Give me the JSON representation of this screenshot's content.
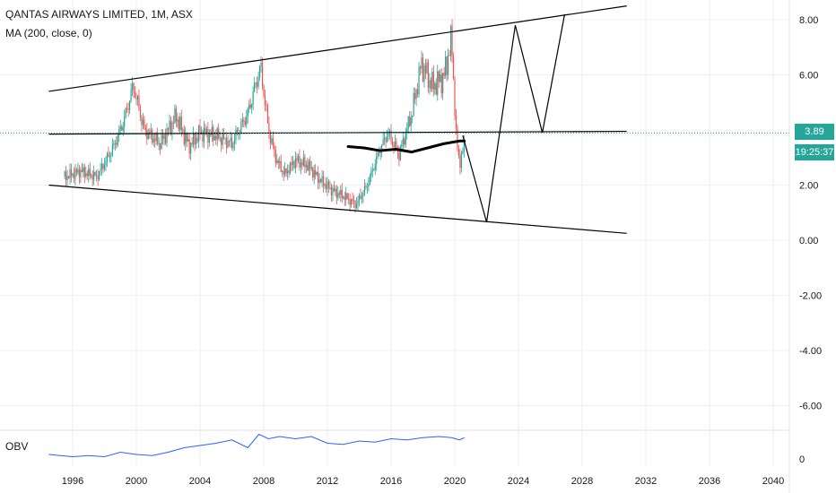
{
  "header": {
    "title": "QANTAS AIRWAYS LIMITED, 1M, ASX",
    "indicator": "MA (200, close, 0)"
  },
  "obv_panel": {
    "label": "OBV",
    "tick": "0"
  },
  "price_tag": {
    "last_price": "3.89",
    "countdown": "19:25:37"
  },
  "colors": {
    "up": "#26a69a",
    "down": "#ef5350",
    "ma": "#000000",
    "trend_lines": "#000000",
    "obv": "#2962ff",
    "price_tag": "#26a69a",
    "grid": "#e0e3eb"
  },
  "chart_data": [
    {
      "type": "candlestick",
      "title": "QANTAS AIRWAYS LIMITED, 1M, ASX",
      "xlim": [
        1994,
        2042
      ],
      "ylim": [
        -7,
        8.5
      ],
      "x_ticks": [
        "1996",
        "2000",
        "2004",
        "2008",
        "2012",
        "2016",
        "2020",
        "2024",
        "2028",
        "2032",
        "2036",
        "2040"
      ],
      "y_ticks": [
        "8.00",
        "6.00",
        "4.00",
        "2.00",
        "0.00",
        "-2.00",
        "-4.00",
        "-6.00"
      ],
      "price_anchors": {
        "x": [
          1995.5,
          1996.5,
          1997.5,
          1998.5,
          1999.2,
          1999.8,
          2000.5,
          2001.5,
          2002.5,
          2003.3,
          2004.0,
          2005.0,
          2006.0,
          2007.0,
          2007.8,
          2008.3,
          2008.8,
          2009.3,
          2010.0,
          2010.8,
          2011.5,
          2012.3,
          2013.0,
          2013.8,
          2014.5,
          2015.3,
          2015.8,
          2016.5,
          2017.3,
          2017.9,
          2018.6,
          2019.3,
          2019.8,
          2020.1,
          2020.3,
          2020.6
        ],
        "close": [
          2.3,
          2.5,
          2.3,
          3.3,
          4.3,
          5.6,
          4.0,
          3.5,
          4.5,
          3.4,
          3.9,
          3.8,
          3.5,
          4.6,
          6.3,
          4.0,
          2.9,
          2.4,
          2.9,
          2.7,
          2.2,
          1.8,
          1.6,
          1.3,
          2.0,
          3.3,
          3.9,
          3.1,
          4.6,
          6.4,
          5.6,
          5.9,
          7.3,
          3.6,
          2.8,
          3.4
        ]
      },
      "ma_series": {
        "name": "MA (200, close, 0)",
        "x": [
          2013.3,
          2014.3,
          2015.3,
          2016.3,
          2017.3,
          2018.3,
          2019.3,
          2020.3,
          2020.6
        ],
        "y": [
          3.4,
          3.35,
          3.25,
          3.3,
          3.2,
          3.35,
          3.5,
          3.6,
          3.6
        ]
      },
      "trend_lines": [
        {
          "x": [
            1994.5,
            2030.8
          ],
          "y": [
            5.4,
            8.5
          ]
        },
        {
          "x": [
            1994.5,
            2030.8
          ],
          "y": [
            3.85,
            3.95
          ]
        },
        {
          "x": [
            1994.5,
            2030.8
          ],
          "y": [
            2.0,
            0.25
          ]
        },
        {
          "x": [
            2020.5,
            2022.0,
            2023.8,
            2025.5,
            2026.9
          ],
          "y": [
            3.8,
            0.65,
            7.8,
            3.9,
            8.2
          ]
        }
      ],
      "last_price": 3.89
    },
    {
      "type": "line",
      "title": "OBV",
      "x_ticks": [
        "1996",
        "2000",
        "2004",
        "2008",
        "2012",
        "2016",
        "2020",
        "2024",
        "2028",
        "2032",
        "2036",
        "2040"
      ],
      "y_ticks": [
        "0"
      ],
      "series": [
        {
          "x": [
            1994.5,
            1996.0,
            1997.0,
            1998.0,
            1999.0,
            2000.0,
            2001.0,
            2002.0,
            2003.0,
            2004.0,
            2005.0,
            2006.0,
            2007.0,
            2007.7,
            2008.3,
            2009.0,
            2010.0,
            2011.0,
            2012.0,
            2013.0,
            2014.0,
            2015.0,
            2016.0,
            2017.0,
            2018.0,
            2019.0,
            2019.8,
            2020.3,
            2020.6
          ],
          "y": [
            0.2,
            0.1,
            0.15,
            0.1,
            0.3,
            0.2,
            0.15,
            0.3,
            0.5,
            0.6,
            0.7,
            0.85,
            0.5,
            1.1,
            0.9,
            1.0,
            0.9,
            1.0,
            0.7,
            0.65,
            0.8,
            0.75,
            0.9,
            0.85,
            0.95,
            1.0,
            0.95,
            0.85,
            0.95
          ]
        }
      ]
    }
  ]
}
